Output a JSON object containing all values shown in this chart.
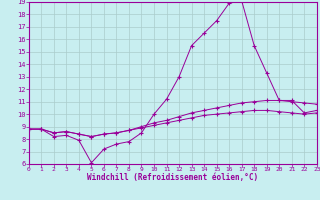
{
  "background_color": "#c8eef0",
  "grid_color": "#aacccc",
  "line_color": "#990099",
  "xlabel": "Windchill (Refroidissement éolien,°C)",
  "ylim": [
    6,
    19
  ],
  "xlim": [
    0,
    23
  ],
  "yticks": [
    6,
    7,
    8,
    9,
    10,
    11,
    12,
    13,
    14,
    15,
    16,
    17,
    18,
    19
  ],
  "xticks": [
    0,
    1,
    2,
    3,
    4,
    5,
    6,
    7,
    8,
    9,
    10,
    11,
    12,
    13,
    14,
    15,
    16,
    17,
    18,
    19,
    20,
    21,
    22,
    23
  ],
  "series1_x": [
    0,
    1,
    2,
    3,
    4,
    5,
    6,
    7,
    8,
    9,
    10,
    11,
    12,
    13,
    14,
    15,
    16,
    17,
    18,
    19,
    20,
    21,
    22,
    23
  ],
  "series1_y": [
    8.8,
    8.8,
    8.2,
    8.3,
    7.9,
    6.1,
    7.2,
    7.6,
    7.8,
    8.5,
    10.0,
    11.2,
    13.0,
    15.5,
    16.5,
    17.5,
    18.9,
    19.1,
    15.5,
    13.3,
    11.1,
    11.1,
    10.1,
    10.3
  ],
  "series2_x": [
    0,
    1,
    2,
    3,
    4,
    5,
    6,
    7,
    8,
    9,
    10,
    11,
    12,
    13,
    14,
    15,
    16,
    17,
    18,
    19,
    20,
    21,
    22,
    23
  ],
  "series2_y": [
    8.8,
    8.8,
    8.5,
    8.6,
    8.4,
    8.2,
    8.4,
    8.5,
    8.7,
    9.0,
    9.3,
    9.5,
    9.8,
    10.1,
    10.3,
    10.5,
    10.7,
    10.9,
    11.0,
    11.1,
    11.1,
    11.0,
    10.9,
    10.8
  ],
  "series3_x": [
    0,
    1,
    2,
    3,
    4,
    5,
    6,
    7,
    8,
    9,
    10,
    11,
    12,
    13,
    14,
    15,
    16,
    17,
    18,
    19,
    20,
    21,
    22,
    23
  ],
  "series3_y": [
    8.8,
    8.8,
    8.5,
    8.6,
    8.4,
    8.2,
    8.4,
    8.5,
    8.7,
    8.9,
    9.1,
    9.3,
    9.5,
    9.7,
    9.9,
    10.0,
    10.1,
    10.2,
    10.3,
    10.3,
    10.2,
    10.1,
    10.0,
    10.1
  ],
  "tick_fontsize": 5,
  "xlabel_fontsize": 5.5
}
